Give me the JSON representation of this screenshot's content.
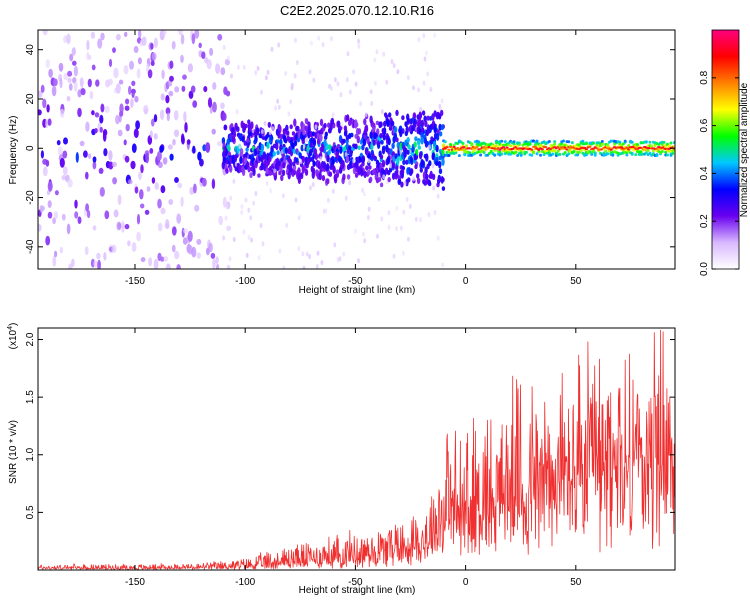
{
  "title": "C2E2.2025.070.12.10.R16",
  "chart_data": [
    {
      "type": "heatmap",
      "xlabel": "Height of straight line (km)",
      "ylabel": "Frequency (Hz)",
      "xlim": [
        -194,
        95
      ],
      "ylim": [
        -49,
        48
      ],
      "xticks": [
        -150,
        -100,
        -50,
        0,
        50
      ],
      "yticks": [
        -40,
        -20,
        0,
        20,
        40
      ],
      "colorbar": {
        "label": "Normalized spectral amplitude",
        "range": [
          0,
          1
        ],
        "ticks": [
          "0.0",
          "0.2",
          "0.4",
          "0.6",
          "0.8"
        ],
        "colors": [
          "#ffffff",
          "#d8b8ff",
          "#6a00f0",
          "#0000ff",
          "#00c8ff",
          "#00ff00",
          "#ffff00",
          "#ff8000",
          "#ff0000",
          "#ff0080"
        ]
      },
      "regions": [
        {
          "x_range": [
            -194,
            -110
          ],
          "character": "scattered weak to moderate (0.05-0.3) across full frequency range, concentrated near 0 Hz"
        },
        {
          "x_range": [
            -110,
            -10
          ],
          "freq_band": [
            -15,
            10
          ],
          "character": "moderate (0.3-0.5) band, widening toward -30 km"
        },
        {
          "x_range": [
            -10,
            95
          ],
          "freq_band": [
            -3,
            3
          ],
          "character": "narrow strong band (0.6-0.95) centered near 0 Hz"
        }
      ]
    },
    {
      "type": "line",
      "xlabel": "Height of straight line (km)",
      "ylabel": "SNR (10 * v/v)",
      "multiplier_label": "(x10",
      "multiplier_exp": "4",
      "multiplier_close": ")",
      "xlim": [
        -194,
        95
      ],
      "ylim": [
        0,
        2.1
      ],
      "xticks": [
        -150,
        -100,
        -50,
        0,
        50
      ],
      "yticks": [
        "0.5",
        "1.0",
        "1.5",
        "2.0"
      ],
      "color": "#f03030",
      "envelope": {
        "x": [
          -194,
          -150,
          -120,
          -100,
          -80,
          -60,
          -40,
          -20,
          -15,
          -10,
          0,
          10,
          20,
          30,
          40,
          50,
          60,
          70,
          80,
          88,
          95
        ],
        "baseline": [
          0.01,
          0.01,
          0.015,
          0.02,
          0.04,
          0.06,
          0.1,
          0.15,
          0.2,
          0.3,
          0.35,
          0.4,
          0.45,
          0.5,
          0.55,
          0.6,
          0.6,
          0.65,
          0.7,
          0.7,
          0.75
        ],
        "peak": [
          0.05,
          0.05,
          0.06,
          0.1,
          0.22,
          0.3,
          0.38,
          0.55,
          0.75,
          1.25,
          1.2,
          1.45,
          1.55,
          1.7,
          1.6,
          1.8,
          1.8,
          1.85,
          1.8,
          2.1,
          1.5
        ]
      },
      "notable_peaks": [
        [
          55.5,
          1.98
        ],
        [
          88.5,
          2.08
        ],
        [
          76,
          1.65
        ],
        [
          92,
          1.45
        ]
      ]
    }
  ]
}
